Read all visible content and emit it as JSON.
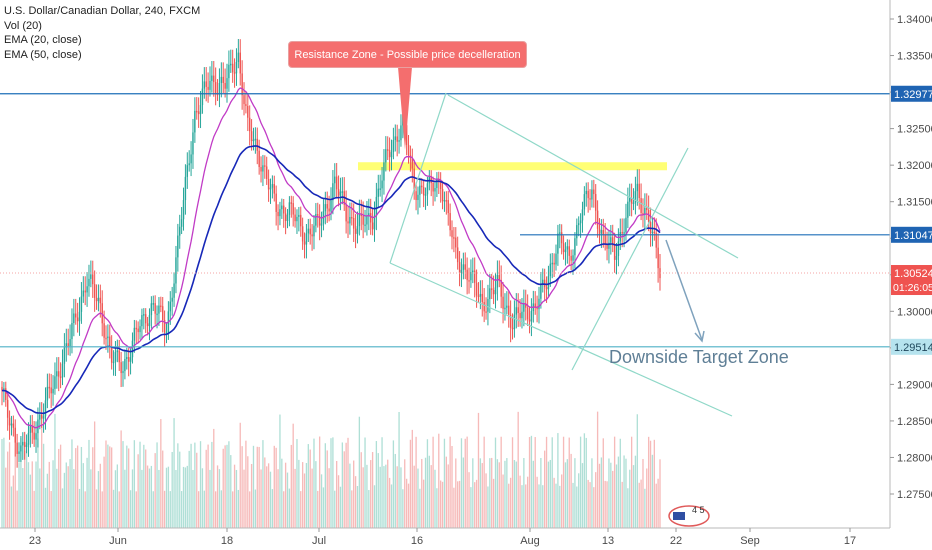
{
  "header": {
    "symbol_line": "U.S. Dollar/Canadian Dollar, 240, FXCM",
    "vol_line": "Vol (20)",
    "ema20_line": "EMA (20, close)",
    "ema50_line": "EMA (50, close)"
  },
  "annotations": {
    "resistance_label": "Resistance Zone - Possible price decelleration",
    "target_label": "Downside Target Zone",
    "badge_text": "4 5"
  },
  "colors": {
    "up": "#26a69a",
    "down": "#ef5350",
    "ema20": "#c13bc6",
    "ema50": "#1728b8",
    "level_line": "#1e6fb8",
    "channel": "#8fd8c8",
    "highlight": "#ffff66",
    "callout": "#f46e6e",
    "current_price": "#ef5350"
  },
  "chart_data": {
    "type": "candlestick",
    "timeframe": "240",
    "x_tick_labels": [
      "23",
      "Jun",
      "18",
      "Jul",
      "16",
      "Aug",
      "13",
      "22",
      "Sep",
      "17"
    ],
    "y_ticks": [
      1.275,
      1.28,
      1.285,
      1.29,
      1.295,
      1.3,
      1.305,
      1.31,
      1.315,
      1.32,
      1.325,
      1.33,
      1.335,
      1.34
    ],
    "y_tick_labels": [
      "1.27500",
      "1.28000",
      "1.28500",
      "1.29000",
      "1.29500",
      "1.30000",
      "1.30500",
      "1.31000",
      "1.31500",
      "1.32000",
      "1.32500",
      "1.33000",
      "1.33500",
      "1.34000"
    ],
    "ylim": [
      1.2725,
      1.3415
    ],
    "price_levels": [
      {
        "label": "1.32977",
        "value": 1.32977,
        "kind": "horizontal-line"
      },
      {
        "label": "1.31047",
        "value": 1.31047,
        "kind": "horizontal-line"
      },
      {
        "label": "1.29514",
        "value": 1.29514,
        "kind": "horizontal-line"
      }
    ],
    "current_price": {
      "label": "1.30524",
      "value": 1.30524,
      "countdown": "01:26:05"
    },
    "resistance_zone": [
      1.3193,
      1.3204
    ],
    "price_anchors": [
      [
        0,
        1.2885
      ],
      [
        10,
        1.2805
      ],
      [
        22,
        1.2865
      ],
      [
        35,
        1.2955
      ],
      [
        45,
        1.3045
      ],
      [
        52,
        1.3005
      ],
      [
        58,
        1.2935
      ],
      [
        64,
        1.2925
      ],
      [
        72,
        1.2975
      ],
      [
        80,
        1.301
      ],
      [
        87,
        1.2975
      ],
      [
        95,
        1.313
      ],
      [
        102,
        1.327
      ],
      [
        110,
        1.3315
      ],
      [
        118,
        1.331
      ],
      [
        125,
        1.335
      ],
      [
        130,
        1.325
      ],
      [
        138,
        1.32
      ],
      [
        145,
        1.314
      ],
      [
        152,
        1.314
      ],
      [
        160,
        1.3105
      ],
      [
        168,
        1.312
      ],
      [
        176,
        1.3175
      ],
      [
        182,
        1.3135
      ],
      [
        188,
        1.3115
      ],
      [
        196,
        1.313
      ],
      [
        204,
        1.3215
      ],
      [
        212,
        1.326
      ],
      [
        218,
        1.317
      ],
      [
        225,
        1.3165
      ],
      [
        232,
        1.318
      ],
      [
        240,
        1.3075
      ],
      [
        247,
        1.305
      ],
      [
        254,
        1.301
      ],
      [
        262,
        1.3035
      ],
      [
        270,
        1.2985
      ],
      [
        276,
        1.3
      ],
      [
        282,
        1.3005
      ],
      [
        288,
        1.304
      ],
      [
        294,
        1.31
      ],
      [
        300,
        1.307
      ],
      [
        306,
        1.3135
      ],
      [
        312,
        1.3165
      ],
      [
        318,
        1.3095
      ],
      [
        324,
        1.308
      ],
      [
        330,
        1.313
      ],
      [
        336,
        1.3165
      ],
      [
        342,
        1.3125
      ],
      [
        348,
        1.3055
      ]
    ]
  }
}
